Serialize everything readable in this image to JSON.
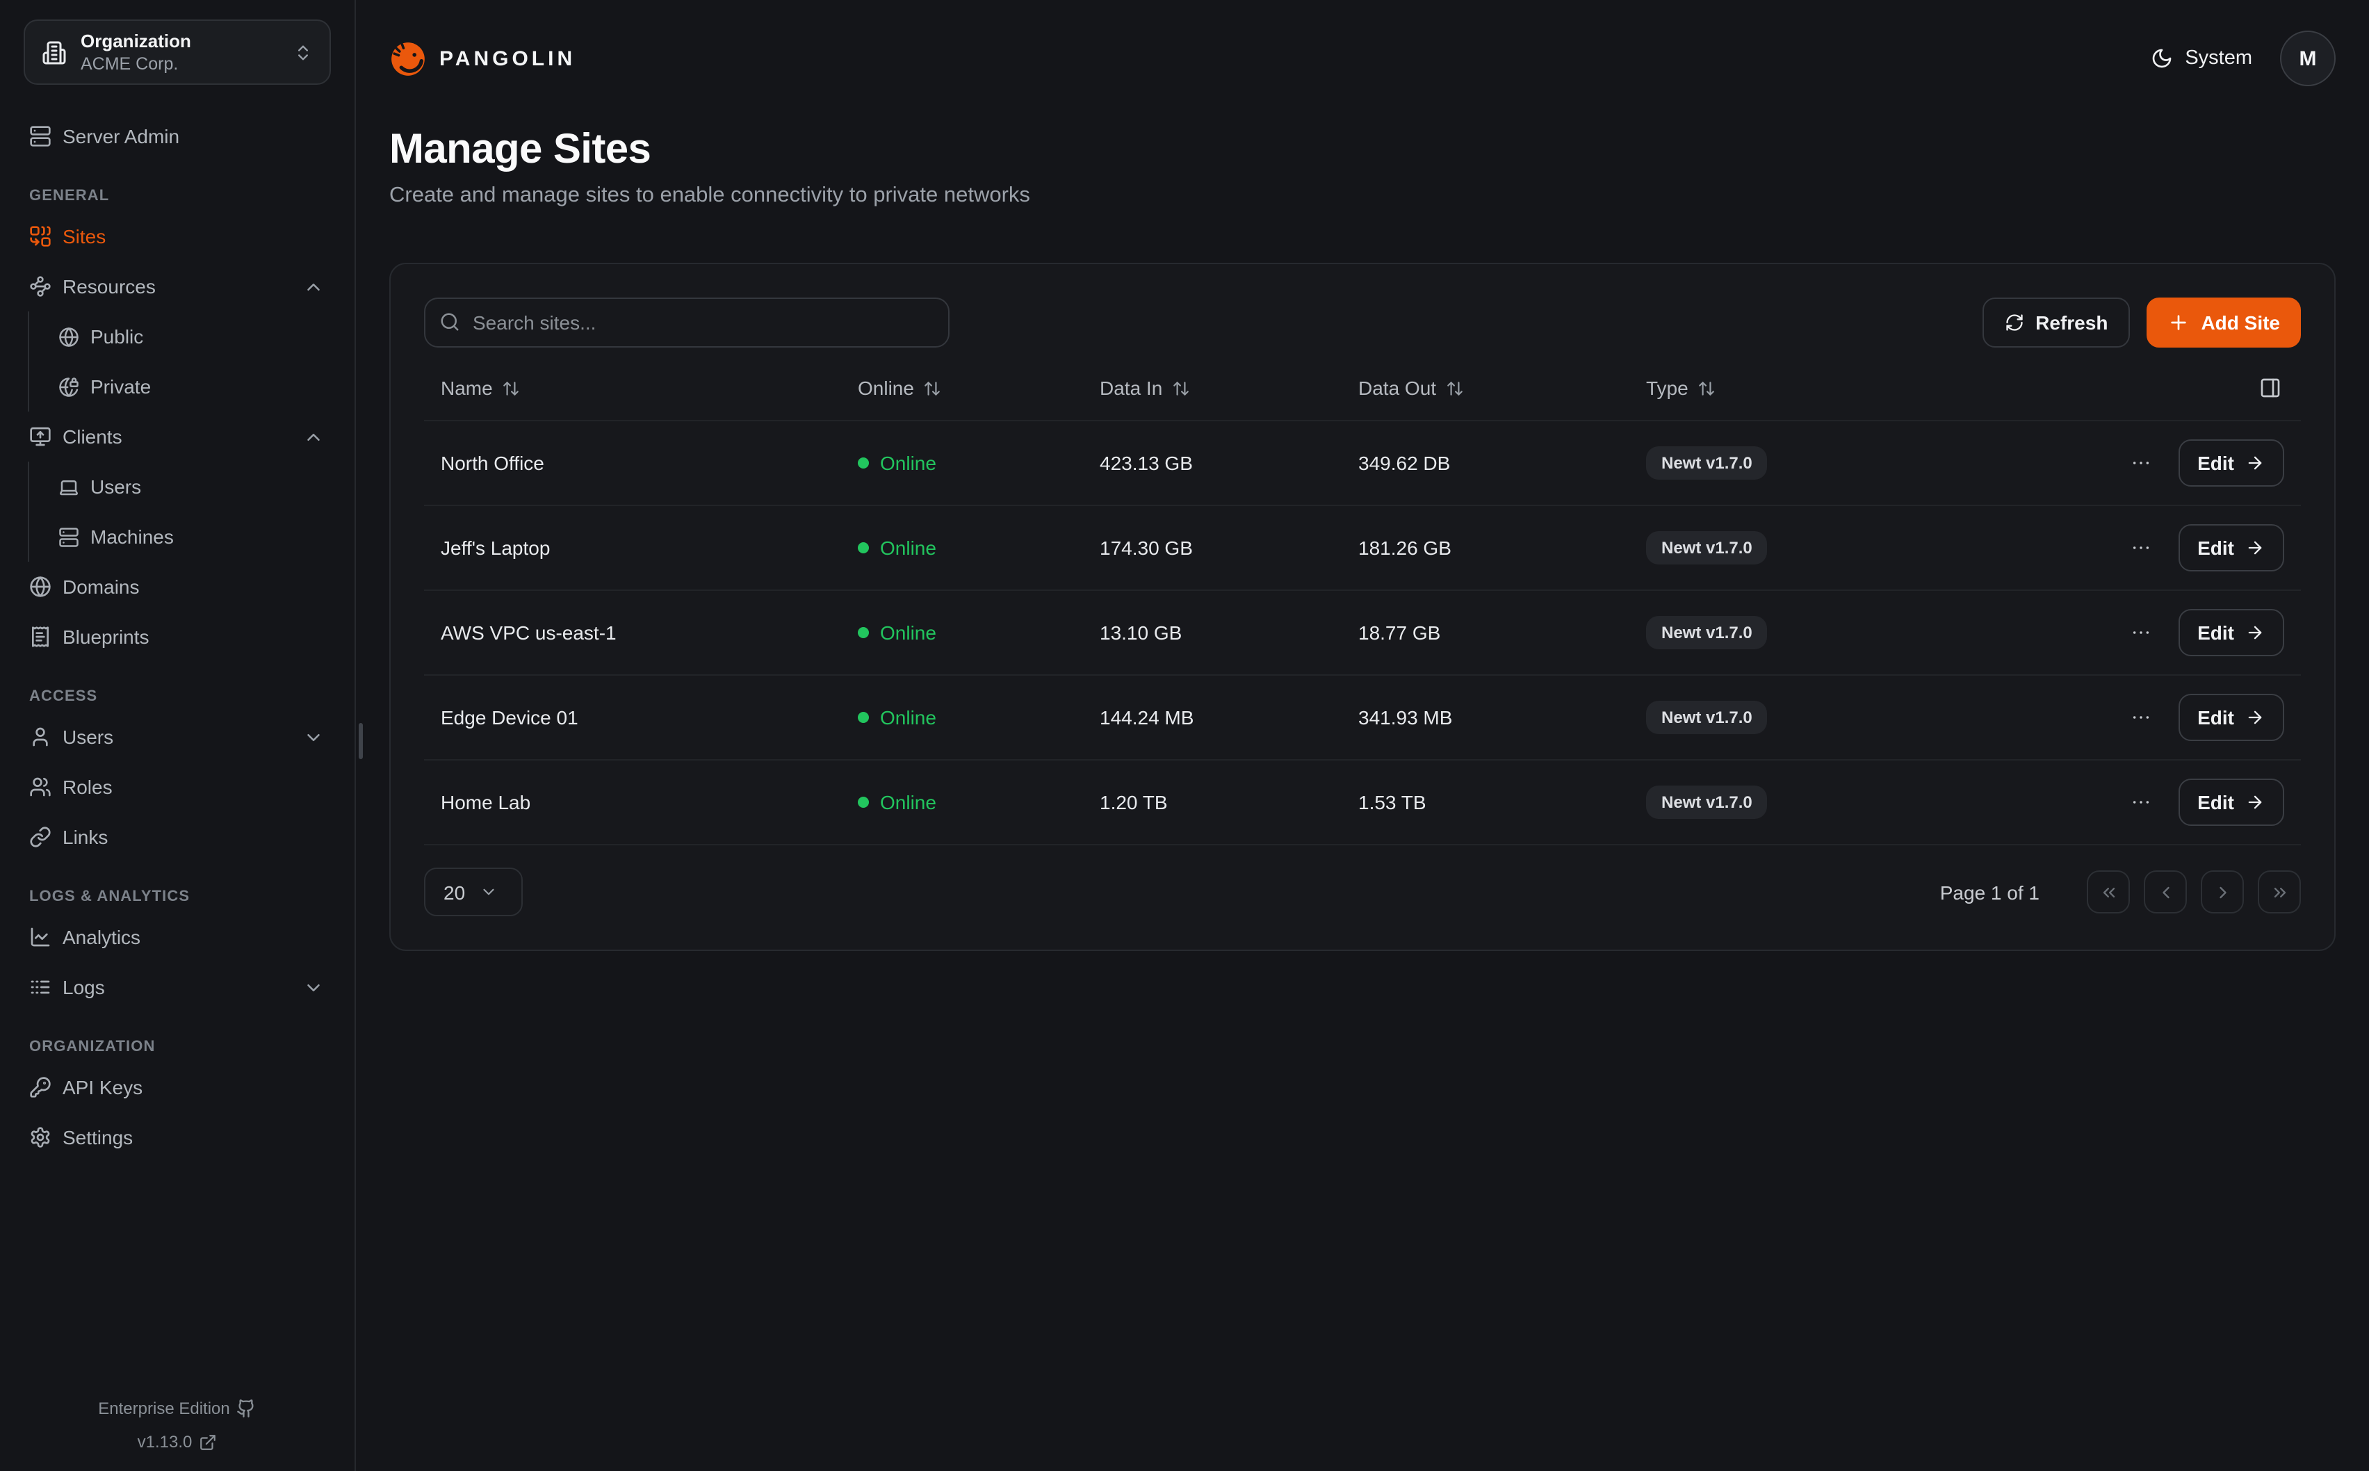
{
  "brand": {
    "name": "PANGOLIN",
    "logo_icon": "pangolin-logo-icon"
  },
  "org_switcher": {
    "label": "Organization",
    "value": "ACME Corp.",
    "icon": "building-icon"
  },
  "topbar": {
    "theme_label": "System",
    "theme_icon": "moon-icon",
    "avatar_initial": "M"
  },
  "sidebar": {
    "standalone": {
      "label": "Server Admin",
      "icon": "server-icon"
    },
    "sections": [
      {
        "label": "GENERAL",
        "items": [
          {
            "label": "Sites",
            "icon": "sites-icon",
            "active": true
          },
          {
            "label": "Resources",
            "icon": "waypoints-icon",
            "chevron": "up",
            "children": [
              {
                "label": "Public",
                "icon": "globe-icon"
              },
              {
                "label": "Private",
                "icon": "globe-lock-icon"
              }
            ]
          },
          {
            "label": "Clients",
            "icon": "monitor-up-icon",
            "chevron": "up",
            "children": [
              {
                "label": "Users",
                "icon": "laptop-icon"
              },
              {
                "label": "Machines",
                "icon": "server-icon"
              }
            ]
          },
          {
            "label": "Domains",
            "icon": "globe-icon"
          },
          {
            "label": "Blueprints",
            "icon": "receipt-icon"
          }
        ]
      },
      {
        "label": "ACCESS",
        "items": [
          {
            "label": "Users",
            "icon": "user-icon",
            "chevron": "down"
          },
          {
            "label": "Roles",
            "icon": "users-icon"
          },
          {
            "label": "Links",
            "icon": "link-icon"
          }
        ]
      },
      {
        "label": "LOGS & ANALYTICS",
        "items": [
          {
            "label": "Analytics",
            "icon": "chart-line-icon"
          },
          {
            "label": "Logs",
            "icon": "logs-icon",
            "chevron": "down"
          }
        ]
      },
      {
        "label": "ORGANIZATION",
        "items": [
          {
            "label": "API Keys",
            "icon": "key-icon"
          },
          {
            "label": "Settings",
            "icon": "settings-icon"
          }
        ]
      }
    ],
    "footer": {
      "edition": "Enterprise Edition",
      "version": "v1.13.0"
    }
  },
  "page": {
    "title": "Manage Sites",
    "subtitle": "Create and manage sites to enable connectivity to private networks"
  },
  "toolbar": {
    "search_placeholder": "Search sites...",
    "refresh_label": "Refresh",
    "add_label": "Add Site"
  },
  "table": {
    "columns": [
      "Name",
      "Online",
      "Data In",
      "Data Out",
      "Type"
    ],
    "edit_label": "Edit",
    "rows": [
      {
        "name": "North Office",
        "status": "Online",
        "data_in": "423.13 GB",
        "data_out": "349.62 DB",
        "type": "Newt v1.7.0"
      },
      {
        "name": "Jeff's Laptop",
        "status": "Online",
        "data_in": "174.30 GB",
        "data_out": "181.26 GB",
        "type": "Newt v1.7.0"
      },
      {
        "name": "AWS VPC us-east-1",
        "status": "Online",
        "data_in": "13.10 GB",
        "data_out": "18.77 GB",
        "type": "Newt v1.7.0"
      },
      {
        "name": "Edge Device 01",
        "status": "Online",
        "data_in": "144.24 MB",
        "data_out": "341.93 MB",
        "type": "Newt v1.7.0"
      },
      {
        "name": "Home Lab",
        "status": "Online",
        "data_in": "1.20 TB",
        "data_out": "1.53 TB",
        "type": "Newt v1.7.0"
      }
    ]
  },
  "pagination": {
    "page_size": "20",
    "page_label": "Page 1 of 1"
  },
  "colors": {
    "accent": "#ea580c",
    "online": "#22c55e"
  }
}
